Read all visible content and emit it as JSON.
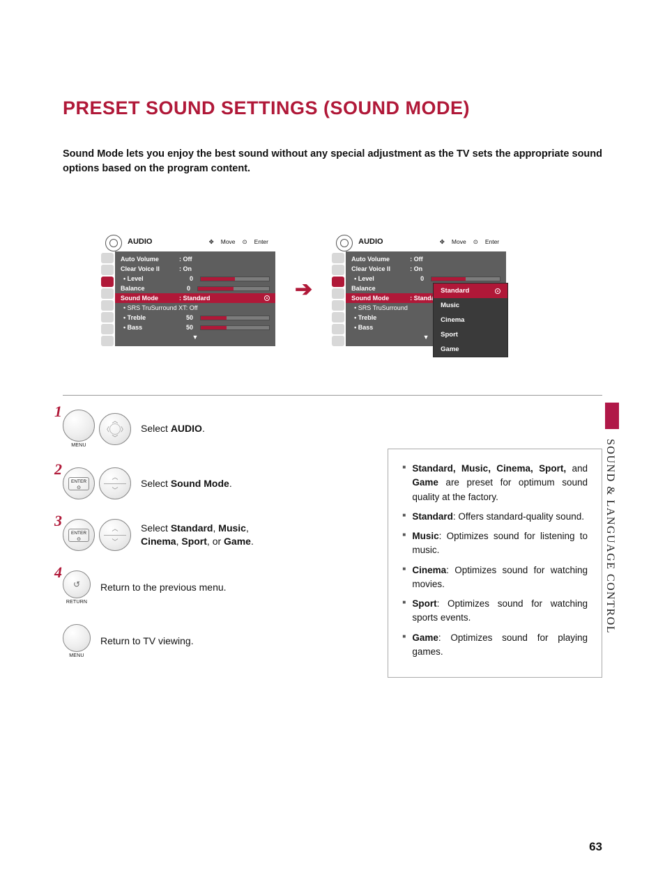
{
  "page": {
    "title": "PRESET SOUND SETTINGS (SOUND MODE)",
    "intro": "Sound Mode lets you enjoy the best sound without any special adjustment as the TV sets the appropriate sound options based on the program content.",
    "side_label": "SOUND & LANGUAGE CONTROL",
    "page_number": "63"
  },
  "osd": {
    "header": "AUDIO",
    "nav_move": "Move",
    "nav_enter": "Enter",
    "rows": {
      "auto_volume": {
        "label": "Auto Volume",
        "value": ": Off"
      },
      "clear_voice": {
        "label": "Clear Voice II",
        "value": ": On"
      },
      "level": {
        "label": "• Level",
        "value": "0"
      },
      "balance": {
        "label": "Balance",
        "value": "0"
      },
      "sound_mode": {
        "label": "Sound Mode",
        "value": ": Standard"
      },
      "srs_left": {
        "label": "• SRS TruSurround XT:  Off"
      },
      "srs_right": {
        "label": "• SRS TruSurround"
      },
      "treble": {
        "label": "• Treble",
        "value": "50"
      },
      "bass": {
        "label": "• Bass",
        "value": "50"
      }
    },
    "popup": {
      "items": [
        "Standard",
        "Music",
        "Cinema",
        "Sport",
        "Game"
      ]
    }
  },
  "steps": {
    "s1": {
      "text_pre": "Select ",
      "text_b": "AUDIO",
      "text_post": ".",
      "btn": "MENU"
    },
    "s2": {
      "text_pre": "Select ",
      "text_b": "Sound Mode",
      "text_post": ".",
      "btn": "ENTER"
    },
    "s3": {
      "text_pre": "Select ",
      "text_b": "Standard",
      "comma1": ", ",
      "b2": "Music",
      "comma2": ", ",
      "b3": "Cinema",
      "comma3": ", ",
      "b4": "Sport",
      "or": ", or ",
      "b5": "Game",
      "text_post": ".",
      "btn": "ENTER"
    },
    "s4": {
      "text": "Return to the previous menu.",
      "btn": "RETURN"
    },
    "s5": {
      "text": "Return to TV viewing.",
      "btn": "MENU"
    }
  },
  "desc": {
    "d1": {
      "b": "Standard, Music, Cinema, Sport,",
      "and": " and ",
      "b2": "Game",
      "rest": " are preset for optimum sound quality at the factory."
    },
    "d2": {
      "b": "Standard",
      "rest": ": Offers standard-quality sound."
    },
    "d3": {
      "b": "Music",
      "rest": ": Optimizes sound for listening to music."
    },
    "d4": {
      "b": "Cinema",
      "rest": ": Optimizes sound for watching movies."
    },
    "d5": {
      "b": "Sport",
      "rest": ": Optimizes sound for watching sports events."
    },
    "d6": {
      "b": "Game",
      "rest": ": Optimizes sound for playing games."
    }
  },
  "colors": {
    "accent": "#b01838",
    "osd_bg": "#5e5e5e",
    "popup_bg": "#3a3a3a"
  }
}
